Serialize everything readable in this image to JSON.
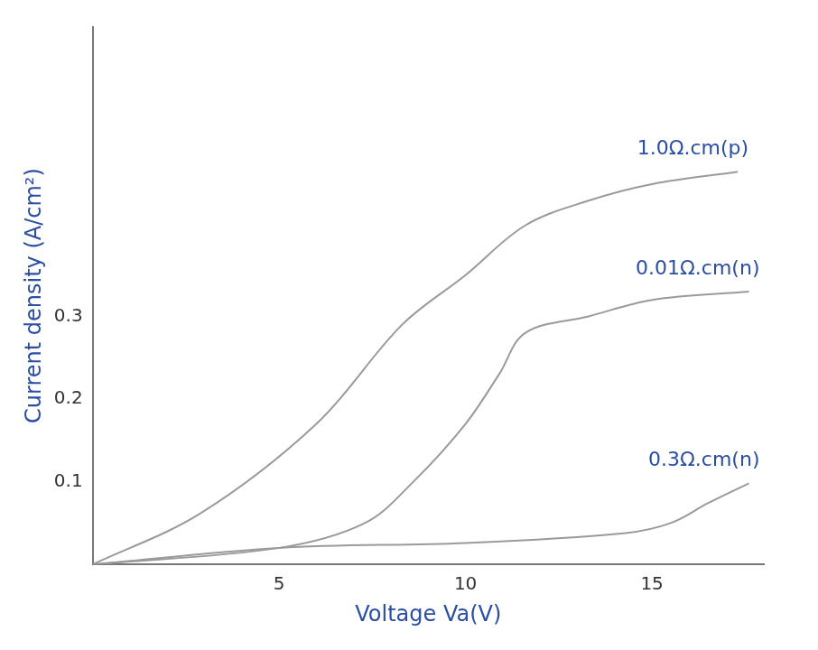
{
  "chart_data": {
    "type": "line",
    "x_label": "Voltage Va(V)",
    "y_label": "Current density (A/cm²)",
    "xlim": [
      0,
      18
    ],
    "xticks": [
      5,
      10,
      15
    ],
    "ylim": [
      0,
      0.65
    ],
    "yticks": [
      0.1,
      0.2,
      0.3
    ],
    "grid": false,
    "series": [
      {
        "name": "1.0Ω.cm(p)",
        "color": "#9a9a9a",
        "x": [
          0,
          2.9,
          6.0,
          8.3,
          10,
          11.6,
          13.3,
          15,
          17.3
        ],
        "values": [
          0,
          0.062,
          0.17,
          0.29,
          0.35,
          0.41,
          0.44,
          0.46,
          0.475
        ]
      },
      {
        "name": "0.01Ω.cm(n)",
        "color": "#9a9a9a",
        "x": [
          0,
          5,
          7.3,
          8.6,
          10,
          10.9,
          11.6,
          13.3,
          15,
          17.6
        ],
        "values": [
          0,
          0.02,
          0.05,
          0.1,
          0.17,
          0.23,
          0.28,
          0.3,
          0.32,
          0.33
        ]
      },
      {
        "name": "0.3Ω.cm(n)",
        "color": "#9a9a9a",
        "x": [
          0,
          5,
          10,
          14.3,
          15.5,
          16.5,
          17.6
        ],
        "values": [
          0,
          0.02,
          0.026,
          0.038,
          0.05,
          0.074,
          0.098
        ]
      }
    ]
  }
}
